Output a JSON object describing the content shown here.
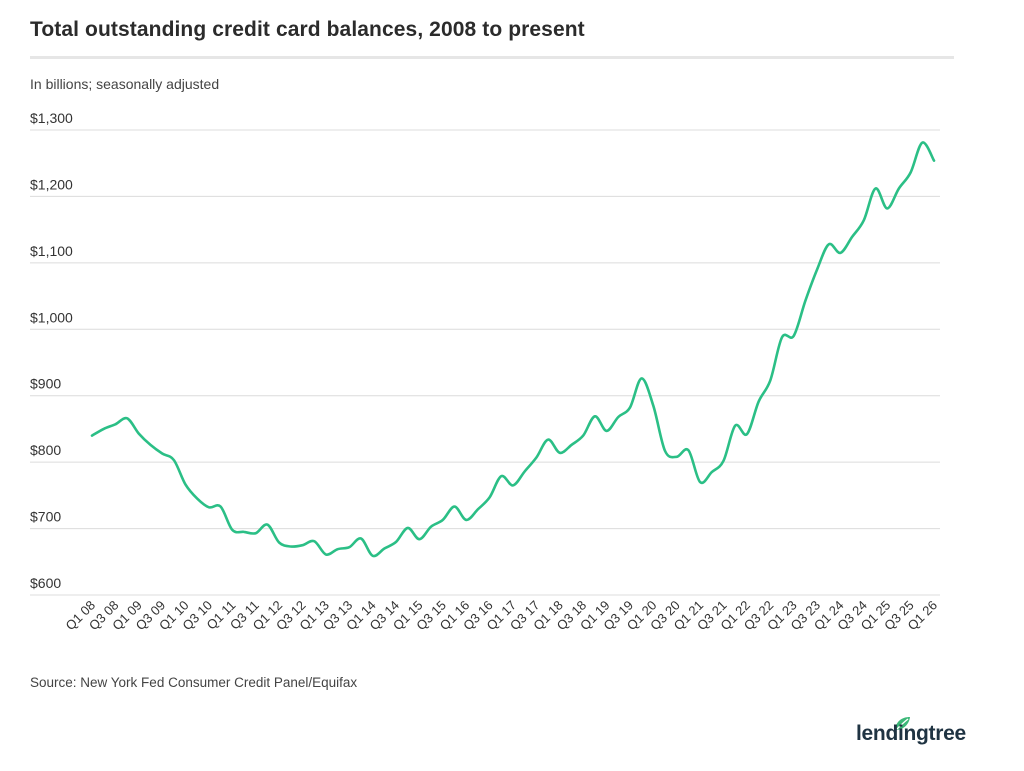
{
  "header": {
    "title": "Total outstanding credit card balances, 2008 to present",
    "subtitle": "In billions; seasonally adjusted"
  },
  "footer": {
    "source": "Source: New York Fed Consumer Credit Panel/Equifax",
    "brand": "lendingtree"
  },
  "colors": {
    "line": "#2bbf86",
    "grid": "#dcdcdc",
    "brand_leaf": "#3cb878"
  },
  "chart_data": {
    "type": "line",
    "title": "Total outstanding credit card balances, 2008 to present",
    "subtitle": "In billions; seasonally adjusted",
    "xlabel": "",
    "ylabel": "",
    "ylim": [
      600,
      1300
    ],
    "yticks": [
      600,
      700,
      800,
      900,
      1000,
      1100,
      1200,
      1300
    ],
    "ytick_labels": [
      "$600",
      "$700",
      "$800",
      "$900",
      "$1,000",
      "$1,100",
      "$1,200",
      "$1,300"
    ],
    "grid": true,
    "x_tick_labels": [
      "Q1 08",
      "Q3 08",
      "Q1 09",
      "Q3 09",
      "Q1 10",
      "Q3 10",
      "Q1 11",
      "Q3 11",
      "Q1 12",
      "Q3 12",
      "Q1 13",
      "Q3 13",
      "Q1 14",
      "Q3 14",
      "Q1 15",
      "Q3 15",
      "Q1 16",
      "Q3 16",
      "Q1 17",
      "Q3 17",
      "Q1 18",
      "Q3 18",
      "Q1 19",
      "Q3 19",
      "Q1 20",
      "Q3 20",
      "Q1 21",
      "Q3 21",
      "Q1 22",
      "Q3 22",
      "Q1 23",
      "Q3 23",
      "Q1 24",
      "Q3 24",
      "Q1 25",
      "Q3 25",
      "Q1 26"
    ],
    "categories": [
      "Q1 08",
      "Q2 08",
      "Q3 08",
      "Q4 08",
      "Q1 09",
      "Q2 09",
      "Q3 09",
      "Q4 09",
      "Q1 10",
      "Q2 10",
      "Q3 10",
      "Q4 10",
      "Q1 11",
      "Q2 11",
      "Q3 11",
      "Q4 11",
      "Q1 12",
      "Q2 12",
      "Q3 12",
      "Q4 12",
      "Q1 13",
      "Q2 13",
      "Q3 13",
      "Q4 13",
      "Q1 14",
      "Q2 14",
      "Q3 14",
      "Q4 14",
      "Q1 15",
      "Q2 15",
      "Q3 15",
      "Q4 15",
      "Q1 16",
      "Q2 16",
      "Q3 16",
      "Q4 16",
      "Q1 17",
      "Q2 17",
      "Q3 17",
      "Q4 17",
      "Q1 18",
      "Q2 18",
      "Q3 18",
      "Q4 18",
      "Q1 19",
      "Q2 19",
      "Q3 19",
      "Q4 19",
      "Q1 20",
      "Q2 20",
      "Q3 20",
      "Q4 20",
      "Q1 21",
      "Q2 21",
      "Q3 21",
      "Q4 21",
      "Q1 22",
      "Q2 22",
      "Q3 22",
      "Q4 22",
      "Q1 23",
      "Q2 23",
      "Q3 23",
      "Q4 23",
      "Q1 24",
      "Q2 24",
      "Q3 24",
      "Q4 24",
      "Q1 25",
      "Q2 25",
      "Q3 25",
      "Q4 25",
      "Q1 26"
    ],
    "values": [
      840,
      850,
      857,
      866,
      843,
      826,
      813,
      803,
      766,
      745,
      732,
      733,
      698,
      695,
      693,
      706,
      679,
      673,
      675,
      681,
      661,
      669,
      672,
      685,
      659,
      670,
      680,
      701,
      684,
      703,
      713,
      733,
      713,
      729,
      747,
      779,
      765,
      786,
      807,
      834,
      814,
      826,
      840,
      869,
      847,
      868,
      882,
      926,
      885,
      817,
      808,
      818,
      770,
      785,
      802,
      855,
      842,
      891,
      923,
      988,
      990,
      1043,
      1090,
      1128,
      1115,
      1139,
      1164,
      1212,
      1182,
      1212,
      1236,
      1281,
      1254
    ]
  }
}
